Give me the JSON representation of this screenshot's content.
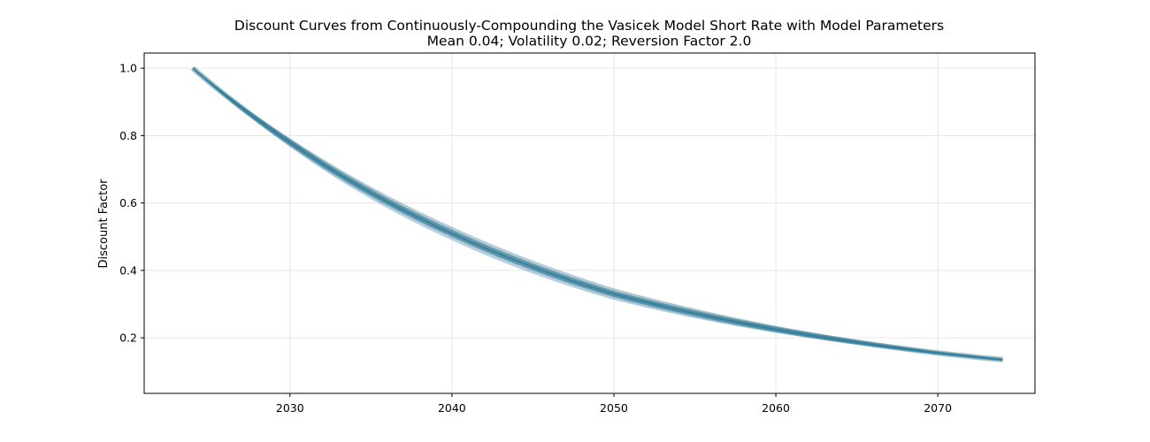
{
  "chart_data": {
    "type": "line",
    "title": "Discount Curves from Continuously-Compounding the Vasicek Model Short Rate with Model Parameters",
    "subtitle": "Mean 0.04; Volatility 0.02; Reversion Factor 2.0",
    "xlabel": "",
    "ylabel": "Discount Factor",
    "xlim": [
      2021.0,
      2076.0
    ],
    "ylim": [
      0.035,
      1.045
    ],
    "x_ticks": [
      2030,
      2040,
      2050,
      2060,
      2070
    ],
    "x_tick_labels": [
      "2030",
      "2040",
      "2050",
      "2060",
      "2070"
    ],
    "y_ticks": [
      0.2,
      0.4,
      0.6,
      0.8,
      1.0
    ],
    "y_tick_labels": [
      "0.2",
      "0.4",
      "0.6",
      "0.8",
      "1.0"
    ],
    "grid": true,
    "legend": "none",
    "x_start": 2024.0,
    "x_end": 2074.0,
    "series": [
      {
        "x": [
          2024,
          2030,
          2040,
          2050,
          2060,
          2070,
          2074
        ],
        "values": [
          1.0,
          0.78,
          0.51,
          0.33,
          0.225,
          0.155,
          0.135
        ]
      }
    ],
    "ensemble_range_at_end": [
      0.122,
      0.145
    ],
    "colors": {
      "main": "#1f77b4",
      "fan": "#4a8a8a",
      "grid": "#e6e6e6"
    }
  }
}
